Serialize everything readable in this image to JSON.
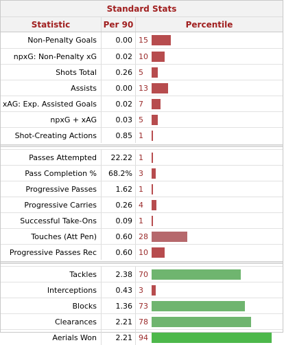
{
  "title": "Standard Stats",
  "headers": {
    "statistic": "Statistic",
    "per90": "Per 90",
    "percentile": "Percentile"
  },
  "colors": {
    "low": "#b74c4e",
    "mid": "#b6686c",
    "high": "#6fb56f",
    "top": "#4db84b",
    "header_text": "#a01f1f"
  },
  "groups": [
    [
      {
        "stat": "Non-Penalty Goals",
        "per90": "0.00",
        "pct": 15
      },
      {
        "stat": "npxG: Non-Penalty xG",
        "per90": "0.02",
        "pct": 10
      },
      {
        "stat": "Shots Total",
        "per90": "0.26",
        "pct": 5
      },
      {
        "stat": "Assists",
        "per90": "0.00",
        "pct": 13
      },
      {
        "stat": "xAG: Exp. Assisted Goals",
        "per90": "0.02",
        "pct": 7
      },
      {
        "stat": "npxG + xAG",
        "per90": "0.03",
        "pct": 5
      },
      {
        "stat": "Shot-Creating Actions",
        "per90": "0.85",
        "pct": 1
      }
    ],
    [
      {
        "stat": "Passes Attempted",
        "per90": "22.22",
        "pct": 1
      },
      {
        "stat": "Pass Completion %",
        "per90": "68.2%",
        "pct": 3
      },
      {
        "stat": "Progressive Passes",
        "per90": "1.62",
        "pct": 1
      },
      {
        "stat": "Progressive Carries",
        "per90": "0.26",
        "pct": 4
      },
      {
        "stat": "Successful Take-Ons",
        "per90": "0.09",
        "pct": 1
      },
      {
        "stat": "Touches (Att Pen)",
        "per90": "0.60",
        "pct": 28
      },
      {
        "stat": "Progressive Passes Rec",
        "per90": "0.60",
        "pct": 10
      }
    ],
    [
      {
        "stat": "Tackles",
        "per90": "2.38",
        "pct": 70
      },
      {
        "stat": "Interceptions",
        "per90": "0.43",
        "pct": 3
      },
      {
        "stat": "Blocks",
        "per90": "1.36",
        "pct": 73
      },
      {
        "stat": "Clearances",
        "per90": "2.21",
        "pct": 78
      },
      {
        "stat": "Aerials Won",
        "per90": "2.21",
        "pct": 94
      }
    ]
  ]
}
